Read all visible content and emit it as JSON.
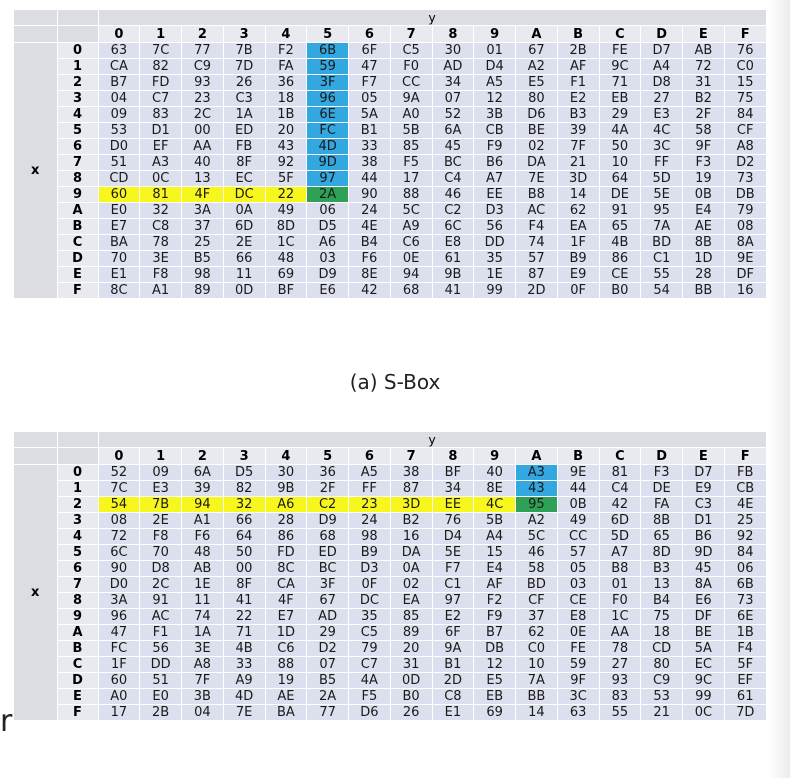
{
  "tables": [
    {
      "caption": "(a) S-Box",
      "y_label": "y",
      "x_label": "x",
      "col_headers": [
        "0",
        "1",
        "2",
        "3",
        "4",
        "5",
        "6",
        "7",
        "8",
        "9",
        "A",
        "B",
        "C",
        "D",
        "E",
        "F"
      ],
      "row_headers": [
        "0",
        "1",
        "2",
        "3",
        "4",
        "5",
        "6",
        "7",
        "8",
        "9",
        "A",
        "B",
        "C",
        "D",
        "E",
        "F"
      ],
      "rows": [
        [
          "63",
          "7C",
          "77",
          "7B",
          "F2",
          "6B",
          "6F",
          "C5",
          "30",
          "01",
          "67",
          "2B",
          "FE",
          "D7",
          "AB",
          "76"
        ],
        [
          "CA",
          "82",
          "C9",
          "7D",
          "FA",
          "59",
          "47",
          "F0",
          "AD",
          "D4",
          "A2",
          "AF",
          "9C",
          "A4",
          "72",
          "C0"
        ],
        [
          "B7",
          "FD",
          "93",
          "26",
          "36",
          "3F",
          "F7",
          "CC",
          "34",
          "A5",
          "E5",
          "F1",
          "71",
          "D8",
          "31",
          "15"
        ],
        [
          "04",
          "C7",
          "23",
          "C3",
          "18",
          "96",
          "05",
          "9A",
          "07",
          "12",
          "80",
          "E2",
          "EB",
          "27",
          "B2",
          "75"
        ],
        [
          "09",
          "83",
          "2C",
          "1A",
          "1B",
          "6E",
          "5A",
          "A0",
          "52",
          "3B",
          "D6",
          "B3",
          "29",
          "E3",
          "2F",
          "84"
        ],
        [
          "53",
          "D1",
          "00",
          "ED",
          "20",
          "FC",
          "B1",
          "5B",
          "6A",
          "CB",
          "BE",
          "39",
          "4A",
          "4C",
          "58",
          "CF"
        ],
        [
          "D0",
          "EF",
          "AA",
          "FB",
          "43",
          "4D",
          "33",
          "85",
          "45",
          "F9",
          "02",
          "7F",
          "50",
          "3C",
          "9F",
          "A8"
        ],
        [
          "51",
          "A3",
          "40",
          "8F",
          "92",
          "9D",
          "38",
          "F5",
          "BC",
          "B6",
          "DA",
          "21",
          "10",
          "FF",
          "F3",
          "D2"
        ],
        [
          "CD",
          "0C",
          "13",
          "EC",
          "5F",
          "97",
          "44",
          "17",
          "C4",
          "A7",
          "7E",
          "3D",
          "64",
          "5D",
          "19",
          "73"
        ],
        [
          "60",
          "81",
          "4F",
          "DC",
          "22",
          "2A",
          "90",
          "88",
          "46",
          "EE",
          "B8",
          "14",
          "DE",
          "5E",
          "0B",
          "DB"
        ],
        [
          "E0",
          "32",
          "3A",
          "0A",
          "49",
          "06",
          "24",
          "5C",
          "C2",
          "D3",
          "AC",
          "62",
          "91",
          "95",
          "E4",
          "79"
        ],
        [
          "E7",
          "C8",
          "37",
          "6D",
          "8D",
          "D5",
          "4E",
          "A9",
          "6C",
          "56",
          "F4",
          "EA",
          "65",
          "7A",
          "AE",
          "08"
        ],
        [
          "BA",
          "78",
          "25",
          "2E",
          "1C",
          "A6",
          "B4",
          "C6",
          "E8",
          "DD",
          "74",
          "1F",
          "4B",
          "BD",
          "8B",
          "8A"
        ],
        [
          "70",
          "3E",
          "B5",
          "66",
          "48",
          "03",
          "F6",
          "0E",
          "61",
          "35",
          "57",
          "B9",
          "86",
          "C1",
          "1D",
          "9E"
        ],
        [
          "E1",
          "F8",
          "98",
          "11",
          "69",
          "D9",
          "8E",
          "94",
          "9B",
          "1E",
          "87",
          "E9",
          "CE",
          "55",
          "28",
          "DF"
        ],
        [
          "8C",
          "A1",
          "89",
          "0D",
          "BF",
          "E6",
          "42",
          "68",
          "41",
          "99",
          "2D",
          "0F",
          "B0",
          "54",
          "BB",
          "16"
        ]
      ],
      "highlights": {
        "blue": [
          [
            0,
            5
          ],
          [
            1,
            5
          ],
          [
            2,
            5
          ],
          [
            3,
            5
          ],
          [
            4,
            5
          ],
          [
            5,
            5
          ],
          [
            6,
            5
          ],
          [
            7,
            5
          ],
          [
            8,
            5
          ]
        ],
        "yellow": [
          [
            9,
            0
          ],
          [
            9,
            1
          ],
          [
            9,
            2
          ],
          [
            9,
            3
          ],
          [
            9,
            4
          ]
        ],
        "green": [
          [
            9,
            5
          ]
        ]
      }
    },
    {
      "caption": "",
      "y_label": "y",
      "x_label": "x",
      "col_headers": [
        "0",
        "1",
        "2",
        "3",
        "4",
        "5",
        "6",
        "7",
        "8",
        "9",
        "A",
        "B",
        "C",
        "D",
        "E",
        "F"
      ],
      "row_headers": [
        "0",
        "1",
        "2",
        "3",
        "4",
        "5",
        "6",
        "7",
        "8",
        "9",
        "A",
        "B",
        "C",
        "D",
        "E",
        "F"
      ],
      "rows": [
        [
          "52",
          "09",
          "6A",
          "D5",
          "30",
          "36",
          "A5",
          "38",
          "BF",
          "40",
          "A3",
          "9E",
          "81",
          "F3",
          "D7",
          "FB"
        ],
        [
          "7C",
          "E3",
          "39",
          "82",
          "9B",
          "2F",
          "FF",
          "87",
          "34",
          "8E",
          "43",
          "44",
          "C4",
          "DE",
          "E9",
          "CB"
        ],
        [
          "54",
          "7B",
          "94",
          "32",
          "A6",
          "C2",
          "23",
          "3D",
          "EE",
          "4C",
          "95",
          "0B",
          "42",
          "FA",
          "C3",
          "4E"
        ],
        [
          "08",
          "2E",
          "A1",
          "66",
          "28",
          "D9",
          "24",
          "B2",
          "76",
          "5B",
          "A2",
          "49",
          "6D",
          "8B",
          "D1",
          "25"
        ],
        [
          "72",
          "F8",
          "F6",
          "64",
          "86",
          "68",
          "98",
          "16",
          "D4",
          "A4",
          "5C",
          "CC",
          "5D",
          "65",
          "B6",
          "92"
        ],
        [
          "6C",
          "70",
          "48",
          "50",
          "FD",
          "ED",
          "B9",
          "DA",
          "5E",
          "15",
          "46",
          "57",
          "A7",
          "8D",
          "9D",
          "84"
        ],
        [
          "90",
          "D8",
          "AB",
          "00",
          "8C",
          "BC",
          "D3",
          "0A",
          "F7",
          "E4",
          "58",
          "05",
          "B8",
          "B3",
          "45",
          "06"
        ],
        [
          "D0",
          "2C",
          "1E",
          "8F",
          "CA",
          "3F",
          "0F",
          "02",
          "C1",
          "AF",
          "BD",
          "03",
          "01",
          "13",
          "8A",
          "6B"
        ],
        [
          "3A",
          "91",
          "11",
          "41",
          "4F",
          "67",
          "DC",
          "EA",
          "97",
          "F2",
          "CF",
          "CE",
          "F0",
          "B4",
          "E6",
          "73"
        ],
        [
          "96",
          "AC",
          "74",
          "22",
          "E7",
          "AD",
          "35",
          "85",
          "E2",
          "F9",
          "37",
          "E8",
          "1C",
          "75",
          "DF",
          "6E"
        ],
        [
          "47",
          "F1",
          "1A",
          "71",
          "1D",
          "29",
          "C5",
          "89",
          "6F",
          "B7",
          "62",
          "0E",
          "AA",
          "18",
          "BE",
          "1B"
        ],
        [
          "FC",
          "56",
          "3E",
          "4B",
          "C6",
          "D2",
          "79",
          "20",
          "9A",
          "DB",
          "C0",
          "FE",
          "78",
          "CD",
          "5A",
          "F4"
        ],
        [
          "1F",
          "DD",
          "A8",
          "33",
          "88",
          "07",
          "C7",
          "31",
          "B1",
          "12",
          "10",
          "59",
          "27",
          "80",
          "EC",
          "5F"
        ],
        [
          "60",
          "51",
          "7F",
          "A9",
          "19",
          "B5",
          "4A",
          "0D",
          "2D",
          "E5",
          "7A",
          "9F",
          "93",
          "C9",
          "9C",
          "EF"
        ],
        [
          "A0",
          "E0",
          "3B",
          "4D",
          "AE",
          "2A",
          "F5",
          "B0",
          "C8",
          "EB",
          "BB",
          "3C",
          "83",
          "53",
          "99",
          "61"
        ],
        [
          "17",
          "2B",
          "04",
          "7E",
          "BA",
          "77",
          "D6",
          "26",
          "E1",
          "69",
          "14",
          "63",
          "55",
          "21",
          "0C",
          "7D"
        ]
      ],
      "highlights": {
        "blue": [
          [
            0,
            10
          ],
          [
            1,
            10
          ]
        ],
        "yellow": [
          [
            2,
            0
          ],
          [
            2,
            1
          ],
          [
            2,
            2
          ],
          [
            2,
            3
          ],
          [
            2,
            4
          ],
          [
            2,
            5
          ],
          [
            2,
            6
          ],
          [
            2,
            7
          ],
          [
            2,
            8
          ],
          [
            2,
            9
          ]
        ],
        "green": [
          [
            2,
            10
          ]
        ]
      }
    }
  ],
  "stray_text": "r"
}
